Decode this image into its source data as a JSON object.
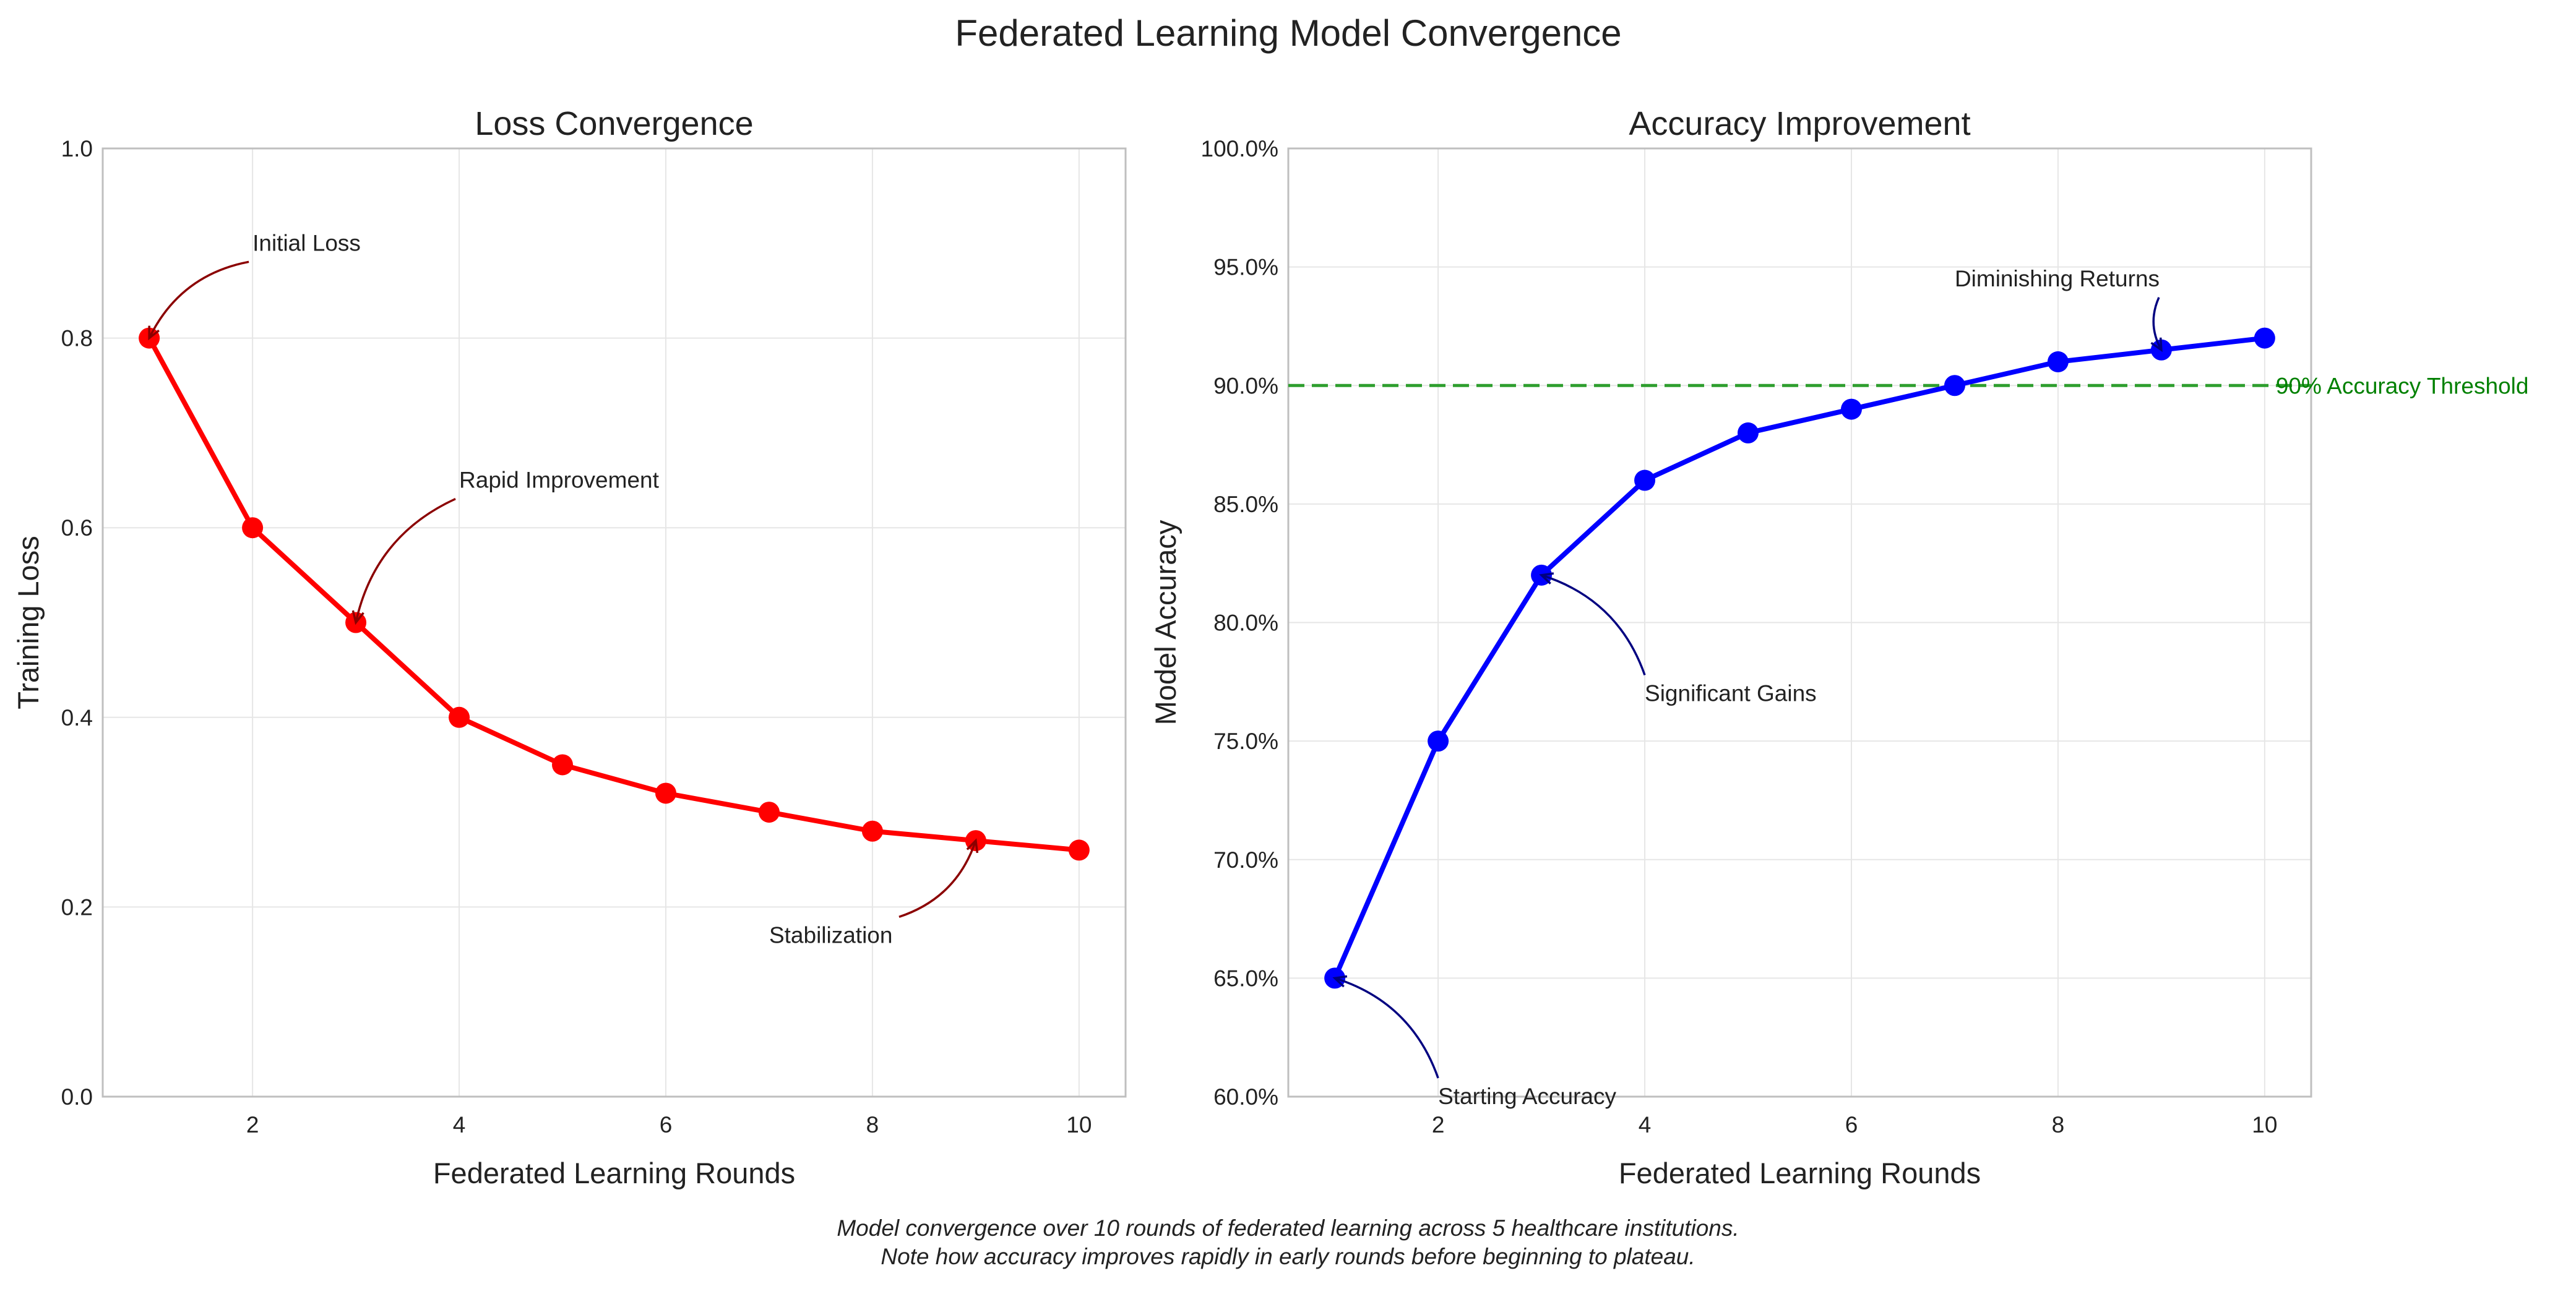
{
  "figure": {
    "title": "Federated Learning Model Convergence",
    "caption_line1": "Model convergence over 10 rounds of federated learning across 5 healthcare institutions.",
    "caption_line2": "Note how accuracy improves rapidly in early rounds before beginning to plateau."
  },
  "chart_data": [
    {
      "type": "line",
      "title": "Loss Convergence",
      "xlabel": "Federated Learning Rounds",
      "ylabel": "Training Loss",
      "x": [
        1,
        2,
        3,
        4,
        5,
        6,
        7,
        8,
        9,
        10
      ],
      "series": [
        {
          "values": [
            0.8,
            0.6,
            0.5,
            0.4,
            0.35,
            0.32,
            0.3,
            0.28,
            0.27,
            0.26
          ],
          "color": "#ff0000"
        }
      ],
      "xlim": [
        0.55,
        10.45
      ],
      "ylim": [
        0.0,
        1.0
      ],
      "xticks": [
        2,
        4,
        6,
        8,
        10
      ],
      "xtick_labels": [
        "2",
        "4",
        "6",
        "8",
        "10"
      ],
      "yticks": [
        0.0,
        0.2,
        0.4,
        0.6,
        0.8,
        1.0
      ],
      "ytick_labels": [
        "0.0",
        "0.2",
        "0.4",
        "0.6",
        "0.8",
        "1.0"
      ],
      "grid": true,
      "annotations": [
        {
          "text": "Initial Loss",
          "point": [
            1,
            0.8
          ],
          "text_at": [
            2,
            0.9
          ],
          "color": "#8b0000"
        },
        {
          "text": "Rapid Improvement",
          "point": [
            3,
            0.5
          ],
          "text_at": [
            4,
            0.65
          ],
          "color": "#8b0000"
        },
        {
          "text": "Stabilization",
          "point": [
            9,
            0.27
          ],
          "text_at": [
            7,
            0.17
          ],
          "color": "#8b0000"
        }
      ]
    },
    {
      "type": "line",
      "title": "Accuracy Improvement",
      "xlabel": "Federated Learning Rounds",
      "ylabel": "Model Accuracy",
      "x": [
        1,
        2,
        3,
        4,
        5,
        6,
        7,
        8,
        9,
        10
      ],
      "series": [
        {
          "values": [
            0.65,
            0.75,
            0.82,
            0.86,
            0.88,
            0.89,
            0.9,
            0.91,
            0.915,
            0.92
          ],
          "color": "#0000ff"
        }
      ],
      "xlim": [
        0.55,
        10.45
      ],
      "ylim": [
        0.6,
        1.0
      ],
      "xticks": [
        2,
        4,
        6,
        8,
        10
      ],
      "xtick_labels": [
        "2",
        "4",
        "6",
        "8",
        "10"
      ],
      "yticks": [
        0.6,
        0.65,
        0.7,
        0.75,
        0.8,
        0.85,
        0.9,
        0.95,
        1.0
      ],
      "ytick_labels": [
        "60.0%",
        "65.0%",
        "70.0%",
        "75.0%",
        "80.0%",
        "85.0%",
        "90.0%",
        "95.0%",
        "100.0%"
      ],
      "grid": true,
      "reference_line": {
        "y": 0.9,
        "label": "90% Accuracy Threshold",
        "color": "#2e9e2e",
        "label_color": "#008000"
      },
      "annotations": [
        {
          "text": "Starting Accuracy",
          "point": [
            1,
            0.65
          ],
          "text_at": [
            2,
            0.6
          ],
          "color": "#000080"
        },
        {
          "text": "Significant Gains",
          "point": [
            3,
            0.82
          ],
          "text_at": [
            4,
            0.77
          ],
          "color": "#000080"
        },
        {
          "text": "Diminishing Returns",
          "point": [
            9,
            0.915
          ],
          "text_at": [
            7,
            0.945
          ],
          "color": "#000080"
        }
      ]
    }
  ]
}
